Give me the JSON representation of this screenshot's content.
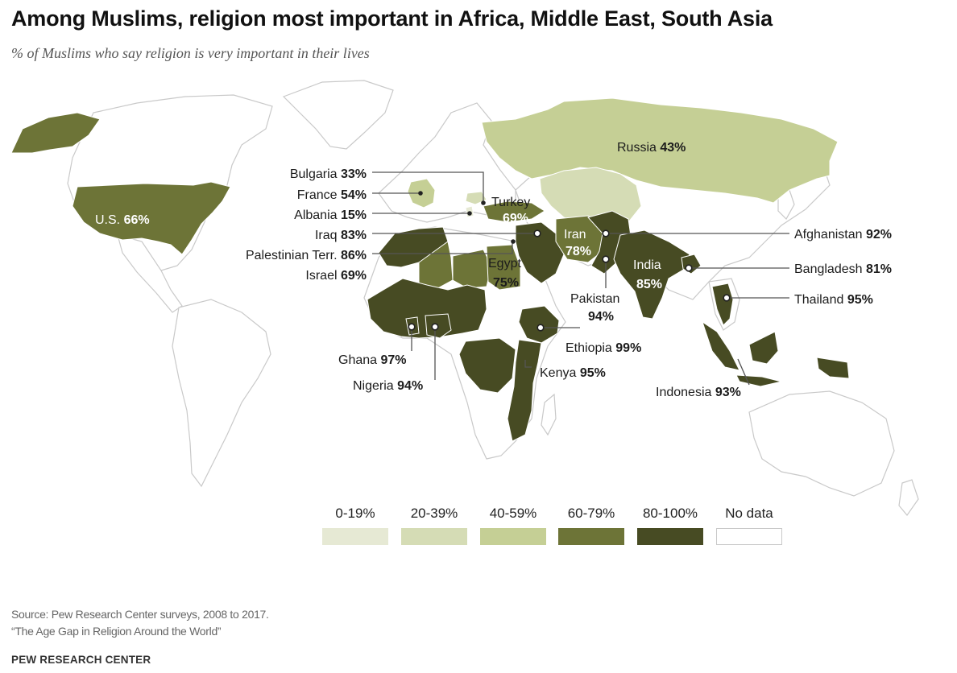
{
  "title": "Among Muslims, religion most important in Africa, Middle East, South Asia",
  "subtitle": "% of Muslims who say religion is very important in their lives",
  "colors": {
    "0-19": "#e6e9d4",
    "20-39": "#d5dcb5",
    "40-59": "#c5cf95",
    "60-79": "#6d7437",
    "80-100": "#474b23",
    "no_data": "#ffffff",
    "land_outline": "#c9c9c9"
  },
  "countries": [
    {
      "name": "Russia",
      "value": "43%"
    },
    {
      "name": "Bulgaria",
      "value": "33%"
    },
    {
      "name": "France",
      "value": "54%"
    },
    {
      "name": "Turkey",
      "value": "69%"
    },
    {
      "name": "Albania",
      "value": "15%"
    },
    {
      "name": "U.S.",
      "value": "66%"
    },
    {
      "name": "Iraq",
      "value": "83%"
    },
    {
      "name": "Iran",
      "value": "78%"
    },
    {
      "name": "Afghanistan",
      "value": "92%"
    },
    {
      "name": "Palestinian Terr.",
      "value": "86%"
    },
    {
      "name": "Egypt",
      "value": "75%"
    },
    {
      "name": "India",
      "value": "85%"
    },
    {
      "name": "Bangladesh",
      "value": "81%"
    },
    {
      "name": "Israel",
      "value": "69%"
    },
    {
      "name": "Pakistan",
      "value": "94%"
    },
    {
      "name": "Thailand",
      "value": "95%"
    },
    {
      "name": "Ethiopia",
      "value": "99%"
    },
    {
      "name": "Ghana",
      "value": "97%"
    },
    {
      "name": "Kenya",
      "value": "95%"
    },
    {
      "name": "Nigeria",
      "value": "94%"
    },
    {
      "name": "Indonesia",
      "value": "93%"
    }
  ],
  "legend": [
    {
      "label": "0-19%",
      "color": "#e6e9d4"
    },
    {
      "label": "20-39%",
      "color": "#d5dcb5"
    },
    {
      "label": "40-59%",
      "color": "#c5cf95"
    },
    {
      "label": "60-79%",
      "color": "#6d7437"
    },
    {
      "label": "80-100%",
      "color": "#474b23"
    },
    {
      "label": "No data",
      "color": "#ffffff"
    }
  ],
  "source_line1": "Source: Pew Research Center surveys, 2008 to 2017.",
  "source_line2": "“The Age Gap in Religion Around the World”",
  "brand": "PEW RESEARCH CENTER"
}
